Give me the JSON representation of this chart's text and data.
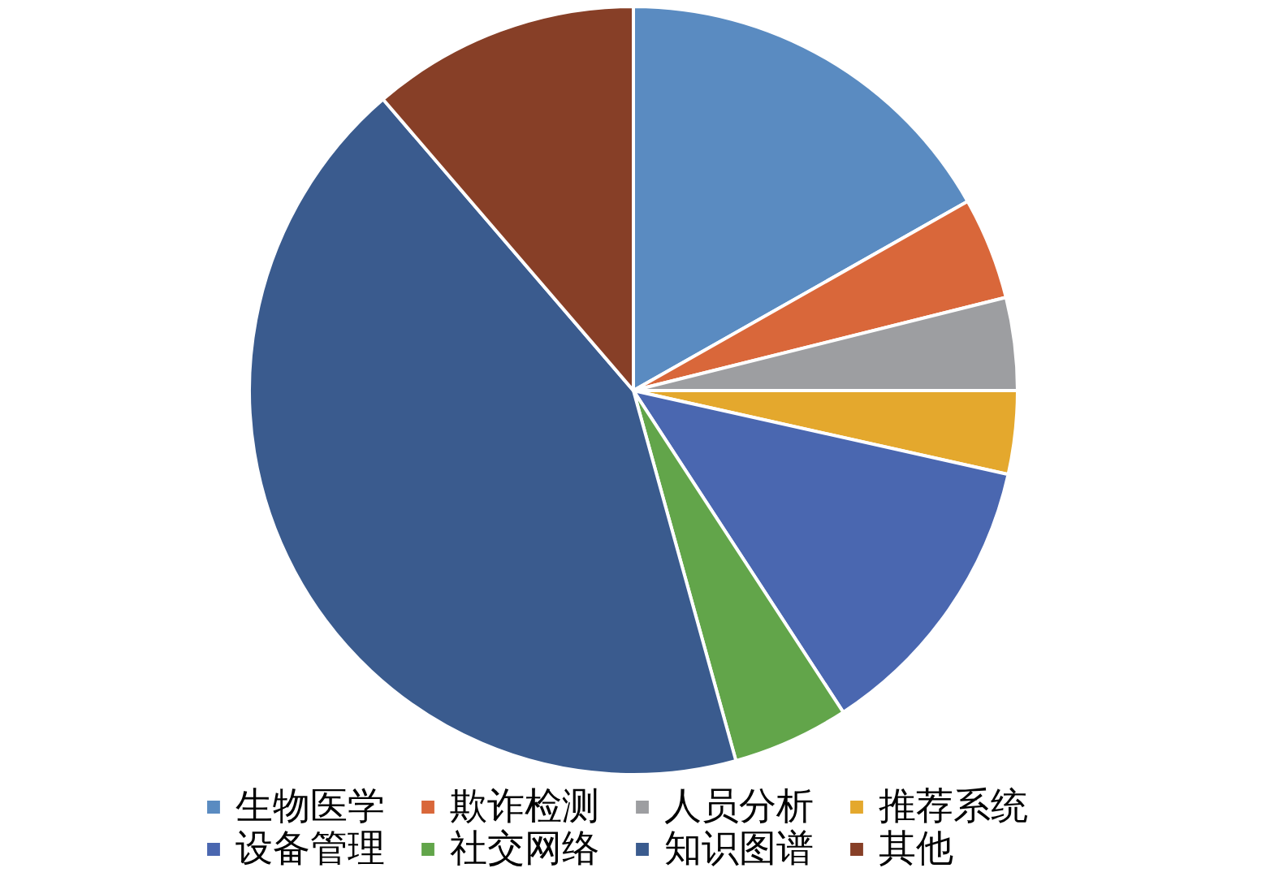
{
  "chart_data": {
    "type": "pie",
    "categories": [
      "生物医学",
      "欺诈检测",
      "人员分析",
      "推荐系统",
      "设备管理",
      "社交网络",
      "知识图谱",
      "其他"
    ],
    "values": [
      16.8,
      4.3,
      3.9,
      3.5,
      12.3,
      4.9,
      43.0,
      11.3
    ],
    "colors": [
      "#5a8bc1",
      "#d9673a",
      "#9d9ea1",
      "#e4a82d",
      "#4a67b0",
      "#62a54a",
      "#3a5b8e",
      "#873f27"
    ],
    "legend": "bottom"
  }
}
